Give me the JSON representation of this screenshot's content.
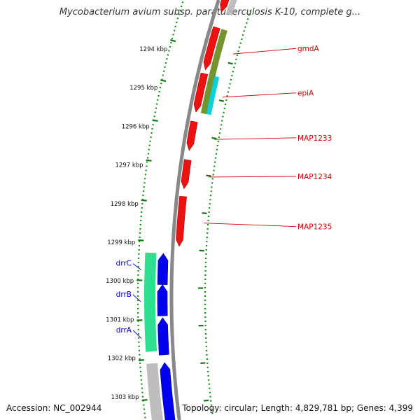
{
  "title": "Mycobacterium avium subsp. paratuberculosis K-10, complete g...",
  "footer": {
    "accession": "Accession: NC_002944",
    "topology": "Topology: circular; Length: 4,829,781 bp; Genes: 4,399"
  },
  "colors": {
    "ring_dots": "#1a8a1a",
    "backbone": "#888888",
    "tick": "#117711",
    "forward_label": "#cc0000",
    "reverse_label": "#0000cc"
  },
  "scale": {
    "ticks": [
      {
        "kbp": 1294,
        "label": "1294 kbp"
      },
      {
        "kbp": 1295,
        "label": "1295 kbp"
      },
      {
        "kbp": 1296,
        "label": "1296 kbp"
      },
      {
        "kbp": 1297,
        "label": "1297 kbp"
      },
      {
        "kbp": 1298,
        "label": "1298 kbp"
      },
      {
        "kbp": 1299,
        "label": "1299 kbp"
      },
      {
        "kbp": 1300,
        "label": "1300 kbp"
      },
      {
        "kbp": 1301,
        "label": "1301 kbp"
      },
      {
        "kbp": 1302,
        "label": "1302 kbp"
      },
      {
        "kbp": 1303,
        "label": "1303 kbp"
      }
    ]
  },
  "genes": [
    {
      "id": "gene-unlabeled-top-forward",
      "label": "",
      "strand": "forward",
      "start_kbp": 1292.6,
      "end_kbp": 1293.0,
      "color": "#ee1111"
    },
    {
      "id": "gene-gmda",
      "label": "gmdA",
      "strand": "forward",
      "start_kbp": 1293.4,
      "end_kbp": 1294.5,
      "color": "#ee1111"
    },
    {
      "id": "gene-epia",
      "label": "epiA",
      "strand": "forward",
      "start_kbp": 1294.6,
      "end_kbp": 1295.6,
      "color": "#ee1111"
    },
    {
      "id": "gene-map1233",
      "label": "MAP1233",
      "strand": "forward",
      "start_kbp": 1295.85,
      "end_kbp": 1296.6,
      "color": "#ee1111"
    },
    {
      "id": "gene-map1234",
      "label": "MAP1234",
      "strand": "forward",
      "start_kbp": 1296.85,
      "end_kbp": 1297.6,
      "color": "#ee1111"
    },
    {
      "id": "gene-map1235",
      "label": "MAP1235",
      "strand": "forward",
      "start_kbp": 1297.8,
      "end_kbp": 1299.1,
      "color": "#ee1111"
    },
    {
      "id": "gene-drrc",
      "label": "drrC",
      "strand": "reverse",
      "start_kbp": 1299.3,
      "end_kbp": 1300.1,
      "color": "#0000ee"
    },
    {
      "id": "gene-drrb",
      "label": "drrB",
      "strand": "reverse",
      "start_kbp": 1300.1,
      "end_kbp": 1300.9,
      "color": "#0000ee"
    },
    {
      "id": "gene-drra",
      "label": "drrA",
      "strand": "reverse",
      "start_kbp": 1300.95,
      "end_kbp": 1301.9,
      "color": "#0000ee"
    },
    {
      "id": "gene-unlabeled-bottom-reverse",
      "label": "",
      "strand": "reverse",
      "start_kbp": 1302.1,
      "end_kbp": 1303.6,
      "color": "#0000ee"
    }
  ],
  "features": [
    {
      "id": "feature-top-gray",
      "track": "forward-outer",
      "start_kbp": 1292.5,
      "end_kbp": 1293.0,
      "color": "#bbbbbb"
    },
    {
      "id": "feature-olive",
      "track": "forward-outer",
      "start_kbp": 1293.4,
      "end_kbp": 1295.6,
      "color": "#6b8e23"
    },
    {
      "id": "feature-cyan",
      "track": "forward-outer2",
      "start_kbp": 1294.6,
      "end_kbp": 1295.6,
      "color": "#00cfd8"
    },
    {
      "id": "feature-green-drr",
      "track": "reverse-outer",
      "start_kbp": 1299.3,
      "end_kbp": 1301.8,
      "color": "#22dd88"
    },
    {
      "id": "feature-gray-bottom",
      "track": "reverse-outer",
      "start_kbp": 1302.1,
      "end_kbp": 1303.7,
      "color": "#bbbbbb"
    }
  ]
}
